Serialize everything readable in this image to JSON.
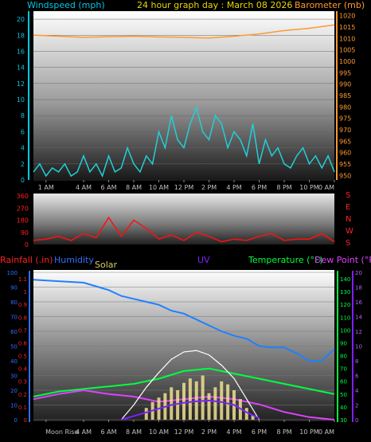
{
  "header": {
    "left_label": "Windspeed (mph)",
    "title": "24 hour graph day : March 08 2026",
    "right_label": "Barometer (mb)",
    "colors": {
      "left": "#00c8e6",
      "title": "#e8d800",
      "right": "#ff9a30"
    }
  },
  "x_labels": [
    "1 AM",
    "4 AM",
    "6 AM",
    "8 AM",
    "10 AM",
    "12 PM",
    "2 PM",
    "4 PM",
    "6 PM",
    "8 PM",
    "10 PM",
    "0 AM"
  ],
  "x_labels_bottom": [
    "Moon Rise",
    "4 AM",
    "6 AM",
    "8 AM",
    "10 AM",
    "12 PM",
    "2 PM",
    "4 PM",
    "6 PM",
    "8 PM",
    "10 PM",
    "0 AM"
  ],
  "bottom_legend": {
    "rainfall": "Rainfall (.in)",
    "humidity": "Humidity",
    "solar": "Solar",
    "uv": "UV",
    "temperature": "Temperature (°F)",
    "dewpoint": "Dew Point (°F)",
    "colors": {
      "rainfall": "#ff2020",
      "humidity": "#3070ff",
      "solar": "#d8d060",
      "uv": "#8020ff",
      "temperature": "#00ff40",
      "dewpoint": "#e040ff"
    }
  },
  "chart_data": [
    {
      "type": "line",
      "x_range": [
        0,
        24
      ],
      "y_left": {
        "label": "Windspeed (mph)",
        "ticks": [
          0,
          2,
          4,
          6,
          8,
          10,
          12,
          14,
          16,
          18,
          20
        ],
        "range": [
          0,
          21
        ]
      },
      "y_right": {
        "label": "Barometer (mb)",
        "ticks": [
          950,
          955,
          960,
          965,
          970,
          975,
          980,
          985,
          990,
          995,
          1000,
          1005,
          1010,
          1015,
          1020
        ],
        "range": [
          948,
          1022
        ]
      },
      "series": [
        {
          "name": "Windspeed (mph)",
          "color": "#20d0d8",
          "x": [
            0,
            0.5,
            1,
            1.5,
            2,
            2.5,
            3,
            3.5,
            4,
            4.5,
            5,
            5.5,
            6,
            6.5,
            7,
            7.5,
            8,
            8.5,
            9,
            9.5,
            10,
            10.5,
            11,
            11.5,
            12,
            12.5,
            13,
            13.5,
            14,
            14.5,
            15,
            15.5,
            16,
            16.5,
            17,
            17.5,
            18,
            18.5,
            19,
            19.5,
            20,
            20.5,
            21,
            21.5,
            22,
            22.5,
            23,
            23.5,
            24
          ],
          "y": [
            1,
            2,
            0.5,
            1.5,
            1,
            2,
            0.5,
            1,
            3,
            1,
            2,
            0.5,
            3,
            1,
            1.5,
            4,
            2,
            1,
            3,
            2,
            6,
            4,
            8,
            5,
            4,
            7,
            9,
            6,
            5,
            8,
            7,
            4,
            6,
            5,
            3,
            7,
            2,
            5,
            3,
            4,
            2,
            1.5,
            3,
            4,
            2,
            3,
            1.5,
            3,
            1
          ]
        },
        {
          "name": "Barometer (mb)",
          "color": "#ff9a30",
          "x": [
            0,
            2,
            4,
            6,
            8,
            10,
            12,
            14,
            16,
            18,
            20,
            22,
            24
          ],
          "y": [
            1011.5,
            1011,
            1010.5,
            1010.8,
            1011,
            1010.7,
            1010.5,
            1010.2,
            1011,
            1012,
            1013.5,
            1014.5,
            1016
          ]
        }
      ]
    },
    {
      "type": "line",
      "x_range": [
        0,
        24
      ],
      "y_left": {
        "ticks": [
          0,
          90,
          180,
          270,
          360
        ],
        "range": [
          0,
          360
        ]
      },
      "right_labels": [
        "S",
        "E",
        "N",
        "W",
        "S"
      ],
      "series": [
        {
          "name": "Wind Direction",
          "color": "#ff1010",
          "x": [
            0,
            1,
            2,
            3,
            4,
            5,
            6,
            7,
            8,
            9,
            10,
            11,
            12,
            13,
            14,
            15,
            16,
            17,
            18,
            19,
            20,
            21,
            22,
            23,
            24
          ],
          "y": [
            30,
            40,
            60,
            30,
            80,
            50,
            200,
            60,
            180,
            120,
            40,
            70,
            30,
            90,
            60,
            20,
            40,
            30,
            60,
            80,
            30,
            40,
            40,
            80,
            20
          ]
        }
      ]
    },
    {
      "type": "line",
      "x_range": [
        0,
        24
      ],
      "y_rain": {
        "label": "Rainfall (.in)",
        "ticks": [
          "0",
          "0.1",
          "0.2",
          "0.3",
          "0.4",
          "0.5",
          "0.6",
          "0.7",
          "0.8",
          "0.9",
          "1",
          "1.1"
        ],
        "range": [
          0,
          1.15
        ]
      },
      "y_humidity": {
        "label": "Humidity",
        "ticks": [
          0,
          10,
          20,
          30,
          40,
          50,
          60,
          70,
          80,
          90,
          100
        ],
        "range": [
          0,
          100
        ]
      },
      "y_temp": {
        "label": "Temperature (°F)",
        "ticks": [
          30,
          40,
          50,
          60,
          70,
          80,
          90,
          100,
          110,
          120,
          130,
          140
        ],
        "range": [
          30,
          145
        ]
      },
      "y_uv": {
        "label": "UV",
        "ticks": [
          0,
          2,
          4,
          6,
          8,
          10,
          12,
          14,
          16,
          18,
          20
        ],
        "range": [
          0,
          20
        ]
      },
      "series": [
        {
          "name": "Humidity",
          "axis": "humidity",
          "color": "#2080ff",
          "x": [
            0,
            2,
            4,
            6,
            7,
            8,
            9,
            10,
            11,
            12,
            13,
            14,
            15,
            16,
            17,
            18,
            19,
            20,
            21,
            22,
            23,
            24
          ],
          "y": [
            95,
            94,
            93,
            88,
            84,
            82,
            80,
            78,
            74,
            72,
            68,
            64,
            60,
            57,
            55,
            50,
            49,
            49,
            45,
            40,
            40,
            48
          ]
        },
        {
          "name": "Temperature (°F)",
          "axis": "temp",
          "color": "#00ff40",
          "x": [
            0,
            2,
            4,
            6,
            8,
            10,
            12,
            14,
            16,
            18,
            20,
            22,
            23,
            24
          ],
          "y": [
            48,
            52,
            54,
            56,
            58,
            62,
            68,
            70,
            66,
            62,
            58,
            54,
            52,
            50
          ]
        },
        {
          "name": "Dew Point (°F)",
          "axis": "temp",
          "color": "#e040ff",
          "x": [
            0,
            2,
            4,
            6,
            8,
            10,
            12,
            14,
            16,
            18,
            20,
            22,
            24
          ],
          "y": [
            46,
            50,
            53,
            50,
            48,
            44,
            46,
            48,
            46,
            42,
            36,
            32,
            30
          ]
        },
        {
          "name": "Solar",
          "axis": "humidity",
          "color": "#ffffff",
          "kind": "curve",
          "x": [
            7,
            8,
            9,
            10,
            11,
            12,
            13,
            14,
            15,
            16,
            17,
            18
          ],
          "y": [
            0,
            10,
            22,
            32,
            41,
            46,
            47,
            44,
            37,
            28,
            14,
            0
          ]
        },
        {
          "name": "Solar",
          "axis": "humidity",
          "color": "#f0e090",
          "kind": "bars",
          "x": [
            9,
            9.5,
            10,
            10.5,
            11,
            11.5,
            12,
            12.5,
            13,
            13.5,
            14,
            14.5,
            15,
            15.5,
            16,
            16.5,
            17,
            17.5
          ],
          "y": [
            8,
            12,
            15,
            18,
            22,
            20,
            25,
            28,
            26,
            30,
            18,
            22,
            26,
            24,
            20,
            14,
            8,
            3
          ]
        },
        {
          "name": "UV",
          "axis": "uv",
          "color": "#8020ff",
          "x": [
            7,
            8,
            9,
            10,
            11,
            12,
            13,
            14,
            15,
            16,
            17,
            18
          ],
          "y": [
            0,
            0.5,
            1,
            1.5,
            2,
            2.3,
            2.5,
            2.6,
            2.4,
            2,
            1,
            0.2
          ]
        }
      ]
    }
  ]
}
